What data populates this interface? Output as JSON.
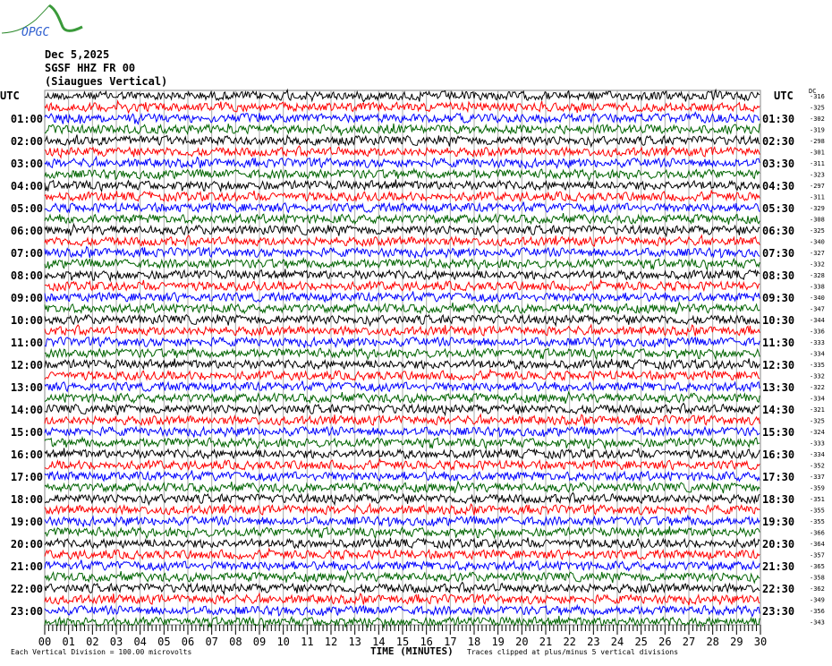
{
  "logo_text": "OPGC",
  "header": {
    "date": "Dec 5,2025",
    "station": "SGSF HHZ FR 00",
    "location": "(Siaugues Vertical)"
  },
  "chart_data": {
    "type": "line",
    "title": "",
    "left_axis_title": "UTC",
    "right_axis_title": "UTC",
    "offset_header": "DC",
    "left_labels": [
      "UTC",
      "01:00",
      "02:00",
      "03:00",
      "04:00",
      "05:00",
      "06:00",
      "07:00",
      "08:00",
      "09:00",
      "10:00",
      "11:00",
      "12:00",
      "13:00",
      "14:00",
      "15:00",
      "16:00",
      "17:00",
      "18:00",
      "19:00",
      "20:00",
      "21:00",
      "22:00",
      "23:00"
    ],
    "right_labels": [
      "UTC",
      "01:30",
      "02:30",
      "03:30",
      "04:30",
      "05:30",
      "06:30",
      "07:30",
      "08:30",
      "09:30",
      "10:30",
      "11:30",
      "12:30",
      "13:30",
      "14:30",
      "15:30",
      "16:30",
      "17:30",
      "18:30",
      "19:30",
      "20:30",
      "21:30",
      "22:30",
      "23:30"
    ],
    "trace_offsets": [
      -316,
      -325,
      -302,
      -319,
      -298,
      -301,
      -311,
      -323,
      -297,
      -311,
      -329,
      -308,
      -325,
      -340,
      -327,
      -332,
      -328,
      -338,
      -340,
      -347,
      -344,
      -336,
      -333,
      -334,
      -335,
      -332,
      -322,
      -334,
      -321,
      -325,
      -324,
      -333,
      -334,
      -352,
      -337,
      -359,
      -351,
      -355,
      -355,
      -366,
      -364,
      -357,
      -365,
      -358,
      -362,
      -349,
      -356,
      -343
    ],
    "trace_colors": [
      "#000000",
      "#ff0000",
      "#0000ff",
      "#006400"
    ],
    "x_ticks": [
      "00",
      "01",
      "02",
      "03",
      "04",
      "05",
      "06",
      "07",
      "08",
      "09",
      "10",
      "11",
      "12",
      "13",
      "14",
      "15",
      "16",
      "17",
      "18",
      "19",
      "20",
      "21",
      "22",
      "23",
      "24",
      "25",
      "26",
      "27",
      "28",
      "29",
      "30"
    ],
    "xlabel": "TIME (MINUTES)",
    "xlim": [
      0,
      30
    ],
    "grid": true
  },
  "footer": {
    "scale_note": "Each Vertical Division =  100.00 microvolts",
    "clip_note": "Traces clipped at plus/minus 5 vertical divisions"
  }
}
